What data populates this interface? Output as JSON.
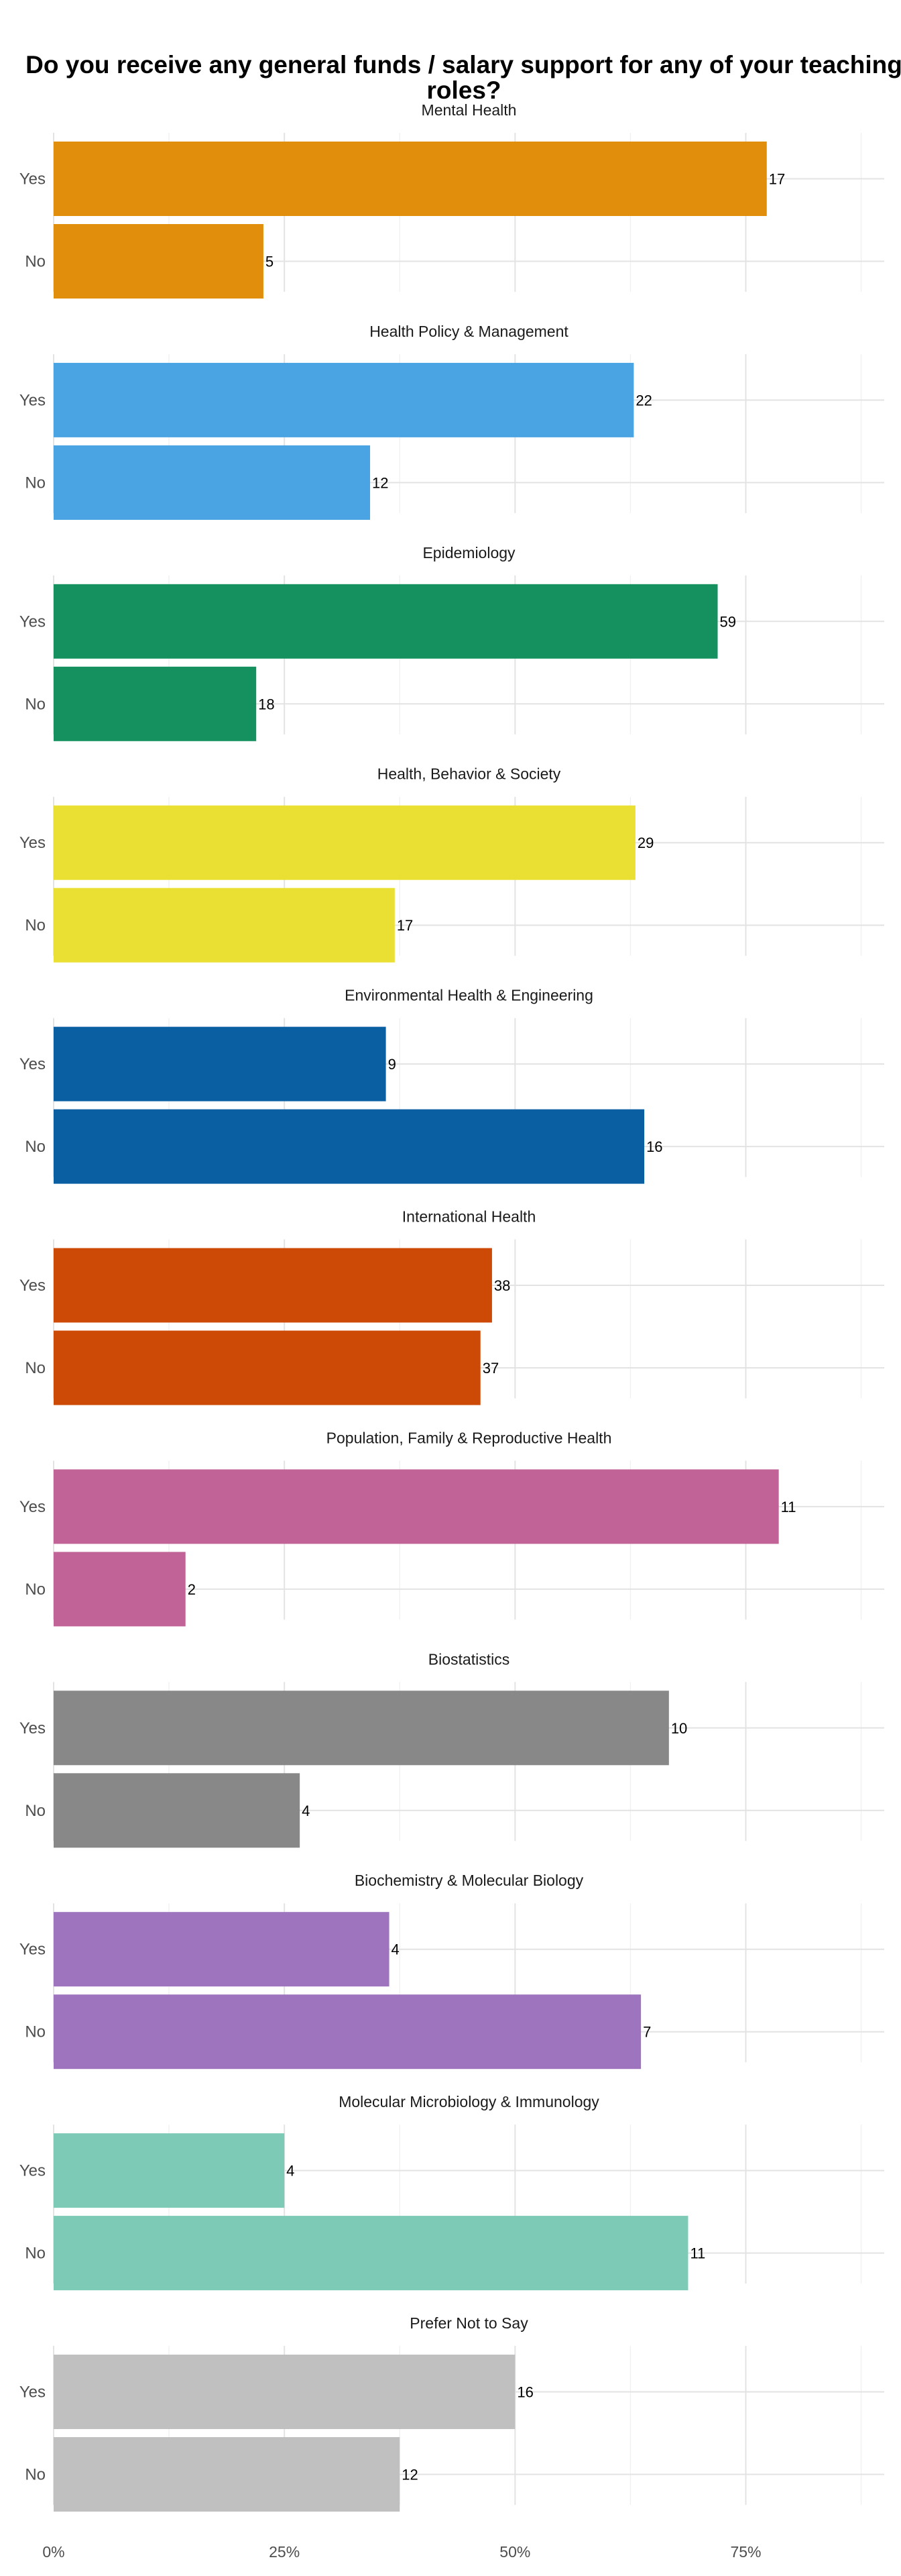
{
  "chart_data": {
    "type": "bar",
    "orientation": "horizontal",
    "title": "Do you receive any general funds / salary support for any of your teaching roles?",
    "xlabel": "",
    "ylabel": "",
    "xlim": [
      0,
      0.9
    ],
    "x_ticks": [
      "0%",
      "25%",
      "50%",
      "75%"
    ],
    "x_tick_values": [
      0,
      0.25,
      0.5,
      0.75
    ],
    "grid": true,
    "legend": "none",
    "categories": [
      "Yes",
      "No"
    ],
    "panels": [
      {
        "name": "Mental Health",
        "color": "#E08E0B",
        "bars": [
          {
            "category": "Yes",
            "share": 0.7727,
            "count": "17"
          },
          {
            "category": "No",
            "share": 0.2273,
            "count": "5"
          }
        ]
      },
      {
        "name": "Health Policy & Management",
        "color": "#4AA3E3",
        "bars": [
          {
            "category": "Yes",
            "share": 0.6286,
            "count": "22"
          },
          {
            "category": "No",
            "share": 0.3429,
            "count": "12"
          }
        ]
      },
      {
        "name": "Epidemiology",
        "color": "#14915F",
        "bars": [
          {
            "category": "Yes",
            "share": 0.7195,
            "count": "59"
          },
          {
            "category": "No",
            "share": 0.2195,
            "count": "18"
          }
        ]
      },
      {
        "name": "Health, Behavior & Society",
        "color": "#EAE033",
        "bars": [
          {
            "category": "Yes",
            "share": 0.6304,
            "count": "29"
          },
          {
            "category": "No",
            "share": 0.3696,
            "count": "17"
          }
        ]
      },
      {
        "name": "Environmental Health & Engineering",
        "color": "#0A5FA3",
        "bars": [
          {
            "category": "Yes",
            "share": 0.36,
            "count": "9"
          },
          {
            "category": "No",
            "share": 0.64,
            "count": "16"
          }
        ]
      },
      {
        "name": "International Health",
        "color": "#CD4A06",
        "bars": [
          {
            "category": "Yes",
            "share": 0.475,
            "count": "38"
          },
          {
            "category": "No",
            "share": 0.4625,
            "count": "37"
          }
        ]
      },
      {
        "name": "Population, Family & Reproductive Health",
        "color": "#C26398",
        "bars": [
          {
            "category": "Yes",
            "share": 0.7857,
            "count": "11"
          },
          {
            "category": "No",
            "share": 0.1429,
            "count": "2"
          }
        ]
      },
      {
        "name": "Biostatistics",
        "color": "#888888",
        "bars": [
          {
            "category": "Yes",
            "share": 0.6667,
            "count": "10"
          },
          {
            "category": "No",
            "share": 0.2667,
            "count": "4"
          }
        ]
      },
      {
        "name": "Biochemistry & Molecular Biology",
        "color": "#9D74BD",
        "bars": [
          {
            "category": "Yes",
            "share": 0.3636,
            "count": "4"
          },
          {
            "category": "No",
            "share": 0.6364,
            "count": "7"
          }
        ]
      },
      {
        "name": "Molecular Microbiology & Immunology",
        "color": "#7DCAB7",
        "bars": [
          {
            "category": "Yes",
            "share": 0.25,
            "count": "4"
          },
          {
            "category": "No",
            "share": 0.6875,
            "count": "11"
          }
        ]
      },
      {
        "name": "Prefer Not to Say",
        "color": "#C0C0C0",
        "bars": [
          {
            "category": "Yes",
            "share": 0.5,
            "count": "16"
          },
          {
            "category": "No",
            "share": 0.375,
            "count": "12"
          }
        ]
      }
    ]
  }
}
